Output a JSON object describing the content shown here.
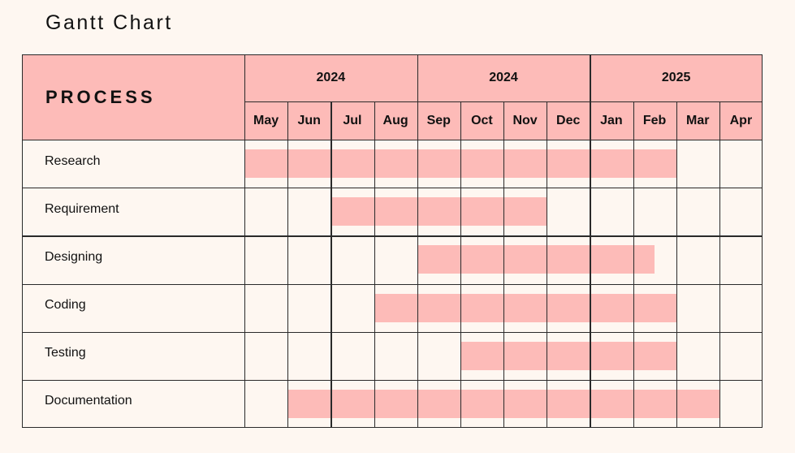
{
  "title": "Gantt Chart",
  "chart_data": {
    "type": "gantt",
    "title": "Gantt Chart",
    "first_column_header": "PROCESS",
    "years": [
      {
        "label": "2024",
        "span": 4
      },
      {
        "label": "2024",
        "span": 4
      },
      {
        "label": "2025",
        "span": 4
      }
    ],
    "months": [
      "May",
      "Jun",
      "Jul",
      "Aug",
      "Sep",
      "Oct",
      "Nov",
      "Dec",
      "Jan",
      "Feb",
      "Mar",
      "Apr"
    ],
    "tasks": [
      {
        "name": "Research",
        "start": "May",
        "end": "Feb"
      },
      {
        "name": "Requirement",
        "start": "Jul",
        "end": "Nov"
      },
      {
        "name": "Designing",
        "start": "Sep",
        "end": "Feb",
        "end_fraction": 0.5
      },
      {
        "name": "Coding",
        "start": "Aug",
        "end": "Feb"
      },
      {
        "name": "Testing",
        "start": "Oct",
        "end": "Feb"
      },
      {
        "name": "Documentation",
        "start": "Jun",
        "end": "Mar"
      }
    ],
    "colors": {
      "header_fill": "#fdbbb8",
      "bar_fill": "#fdbbb8",
      "background": "#fef7f1",
      "grid_line": "#2a2a2a"
    }
  }
}
